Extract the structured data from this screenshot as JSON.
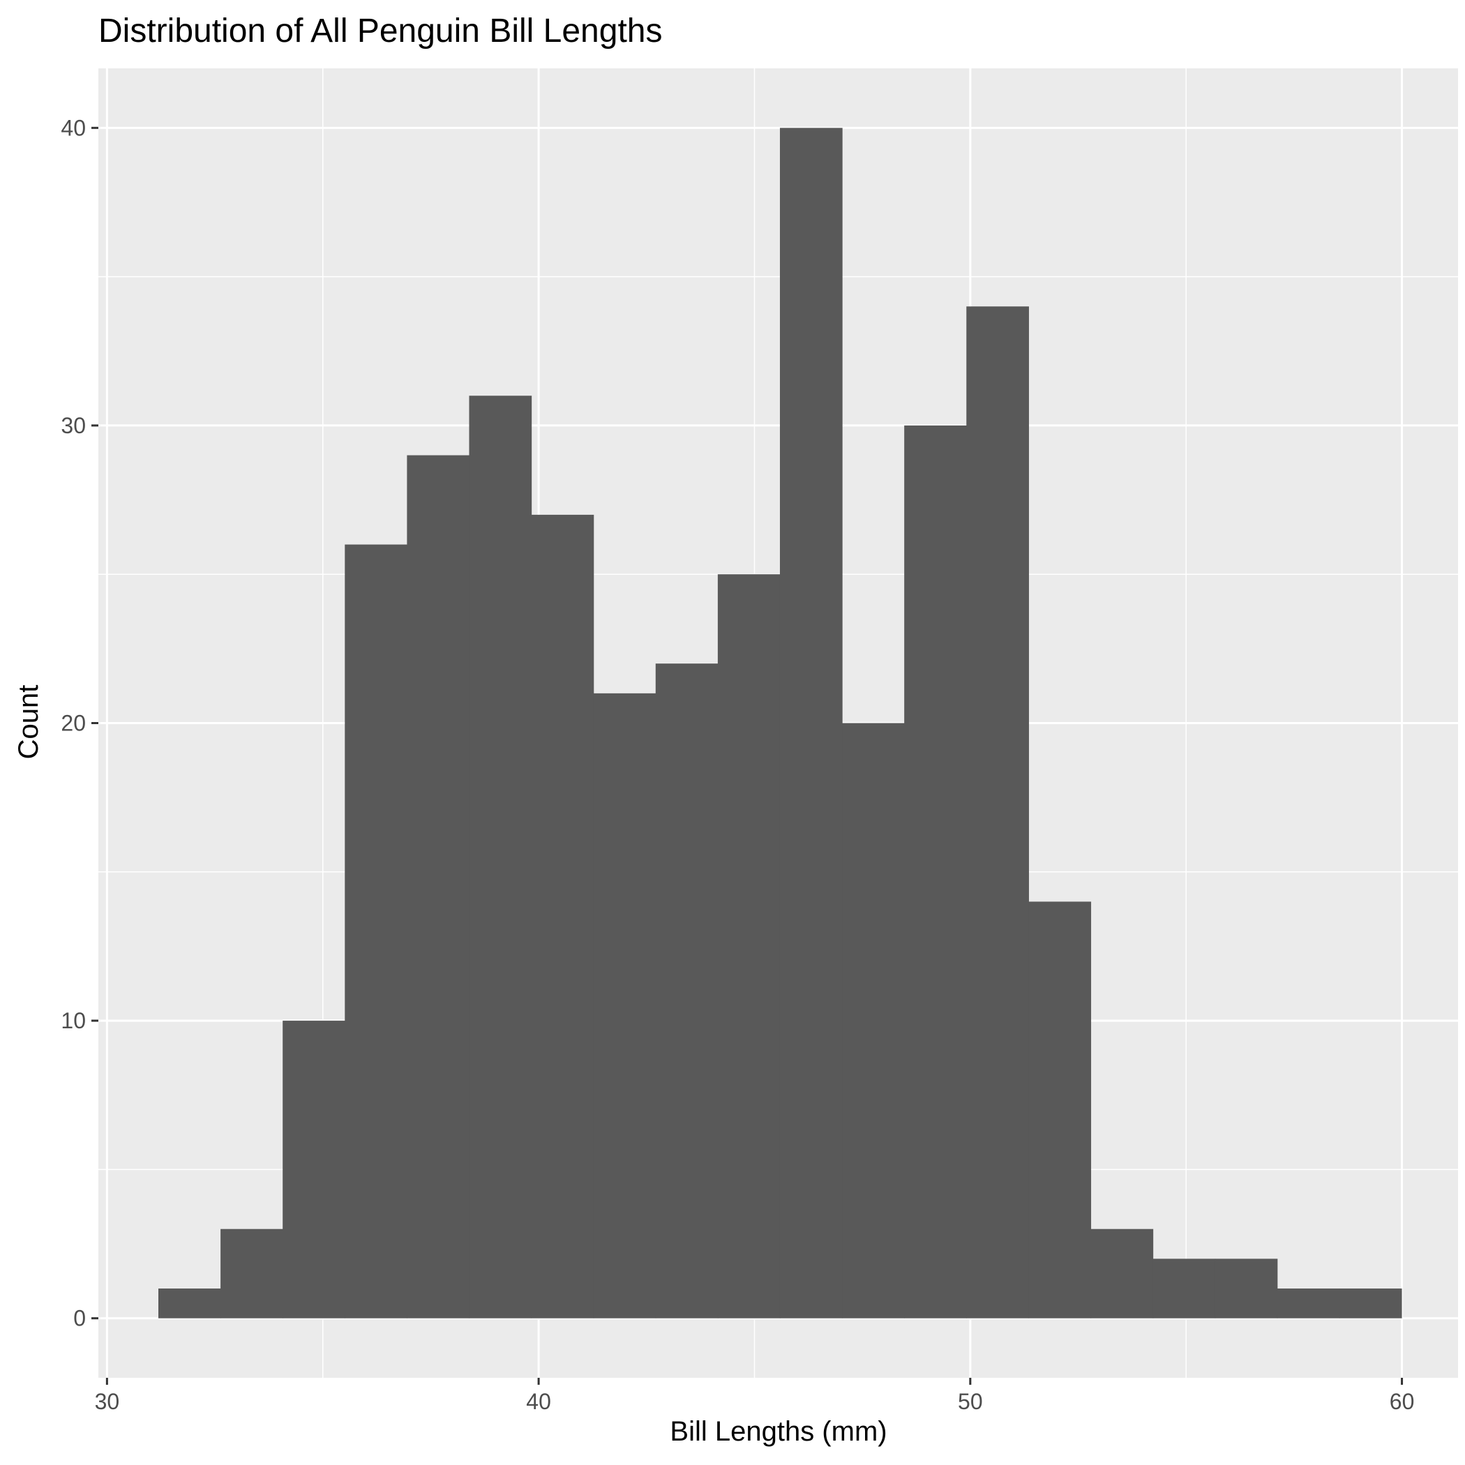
{
  "chart_data": {
    "type": "bar",
    "title": "Distribution of All Penguin Bill Lengths",
    "xlabel": "Bill Lengths (mm)",
    "ylabel": "Count",
    "xlim": [
      29.8,
      61.3
    ],
    "ylim": [
      -2,
      42
    ],
    "x_ticks": [
      30,
      40,
      50,
      60
    ],
    "y_ticks": [
      0,
      10,
      20,
      30,
      40
    ],
    "grid": true,
    "bin_width": 1.44,
    "bins": [
      {
        "start": 31.19,
        "end": 32.63,
        "count": 1
      },
      {
        "start": 32.63,
        "end": 34.07,
        "count": 3
      },
      {
        "start": 34.07,
        "end": 35.51,
        "count": 10
      },
      {
        "start": 35.51,
        "end": 36.95,
        "count": 26
      },
      {
        "start": 36.95,
        "end": 38.39,
        "count": 29
      },
      {
        "start": 38.39,
        "end": 39.83,
        "count": 31
      },
      {
        "start": 39.83,
        "end": 41.27,
        "count": 27
      },
      {
        "start": 41.27,
        "end": 42.71,
        "count": 21
      },
      {
        "start": 42.71,
        "end": 44.15,
        "count": 22
      },
      {
        "start": 44.15,
        "end": 45.59,
        "count": 25
      },
      {
        "start": 45.59,
        "end": 47.03,
        "count": 40
      },
      {
        "start": 47.03,
        "end": 48.47,
        "count": 20
      },
      {
        "start": 48.47,
        "end": 49.91,
        "count": 30
      },
      {
        "start": 49.91,
        "end": 51.35,
        "count": 34
      },
      {
        "start": 51.35,
        "end": 52.79,
        "count": 14
      },
      {
        "start": 52.79,
        "end": 54.23,
        "count": 3
      },
      {
        "start": 54.23,
        "end": 55.67,
        "count": 2
      },
      {
        "start": 55.67,
        "end": 57.11,
        "count": 2
      },
      {
        "start": 57.11,
        "end": 58.55,
        "count": 1
      },
      {
        "start": 58.55,
        "end": 59.99,
        "count": 1
      }
    ],
    "colors": {
      "bar": "#595959",
      "panel": "#ebebeb",
      "grid": "#ffffff",
      "tick_text": "#4d4d4d",
      "tick_mark": "#333333"
    }
  }
}
